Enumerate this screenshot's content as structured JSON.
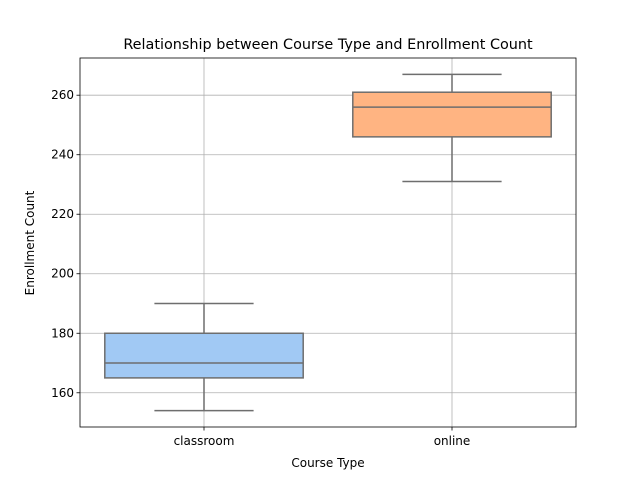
{
  "chart_data": {
    "type": "box",
    "title": "Relationship between Course Type and Enrollment Count",
    "xlabel": "Course Type",
    "ylabel": "Enrollment Count",
    "ylim": [
      148.5,
      272.5
    ],
    "yticks": [
      160,
      180,
      200,
      220,
      240,
      260
    ],
    "grid": true,
    "categories": [
      "classroom",
      "online"
    ],
    "boxes": [
      {
        "category": "classroom",
        "min": 154,
        "q1": 165,
        "median": 170,
        "q3": 180,
        "max": 190,
        "color": "#a1c9f4"
      },
      {
        "category": "online",
        "min": 231,
        "q1": 246,
        "median": 256,
        "q3": 261,
        "max": 267,
        "color": "#ffb482"
      }
    ],
    "colors": {
      "line": "#6e6e6e",
      "grid": "#b0b0b0",
      "axes": "#000000"
    }
  }
}
